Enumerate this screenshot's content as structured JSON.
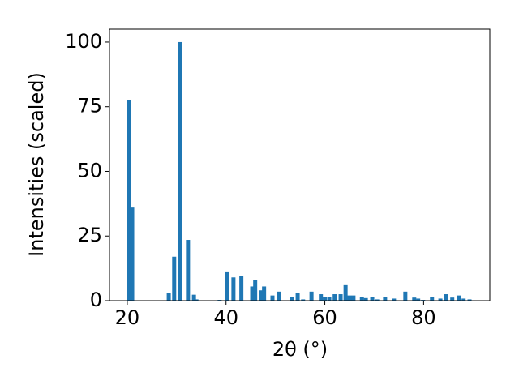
{
  "chart_data": {
    "type": "bar",
    "x_label": "2θ (°)",
    "y_label": "Intensities (scaled)",
    "x": [
      20.3,
      21.0,
      28.4,
      29.5,
      30.7,
      32.3,
      33.5,
      34.0,
      38.7,
      40.2,
      41.5,
      43.1,
      45.3,
      45.9,
      47.1,
      47.7,
      49.4,
      50.7,
      53.3,
      54.5,
      55.6,
      57.3,
      59.2,
      60.0,
      60.9,
      62.0,
      63.2,
      64.2,
      65.0,
      65.8,
      67.5,
      68.3,
      69.6,
      70.6,
      72.2,
      74.0,
      76.3,
      78.1,
      78.9,
      79.9,
      81.7,
      83.4,
      84.5,
      85.8,
      87.2,
      88.1,
      89.3
    ],
    "values": [
      77.5,
      36,
      3,
      17,
      100,
      23.5,
      2.3,
      0.5,
      0.3,
      11,
      9,
      9.5,
      5.5,
      8,
      4,
      5.5,
      2,
      3.5,
      1.5,
      3,
      0.5,
      3.5,
      2.5,
      1.5,
      1.5,
      2.5,
      2.5,
      6,
      2,
      2,
      1.5,
      1,
      1.5,
      0.5,
      1.5,
      0.8,
      3.5,
      1.2,
      0.8,
      0.3,
      1.5,
      0.8,
      2.5,
      1.2,
      2,
      0.8,
      0.5
    ],
    "color": "#1f77b4",
    "xlim": [
      16.4,
      93.4
    ],
    "ylim": [
      0,
      105
    ],
    "xticks": [
      20,
      40,
      60,
      80
    ],
    "yticks": [
      0,
      25,
      50,
      75,
      100
    ]
  }
}
